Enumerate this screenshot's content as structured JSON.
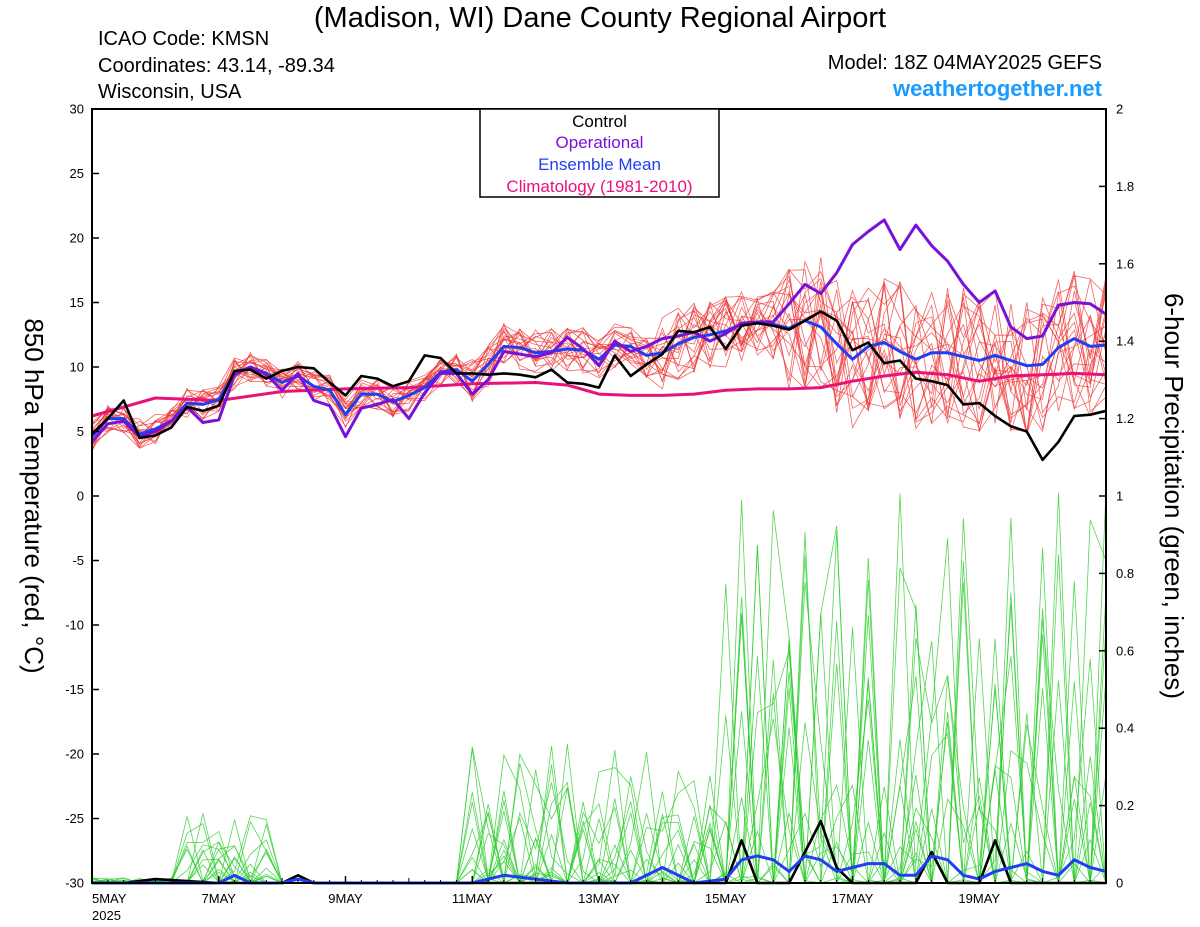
{
  "header": {
    "title": "(Madison, WI) Dane County Regional Airport",
    "icao": "ICAO Code: KMSN",
    "coords": "Coordinates: 43.14, -89.34",
    "region": "Wisconsin, USA",
    "model": "Model: 18Z 04MAY2025 GEFS",
    "site": "weathertogether.net"
  },
  "chart_data": {
    "type": "line",
    "ylabel_left": "850 hPa Temperature (red, °C)",
    "ylabel_right": "6-hour Precipitation (green, inches)",
    "ylim_left": [
      -30,
      30
    ],
    "ylim_right": [
      0,
      2
    ],
    "yticks_left": [
      "30",
      "25",
      "20",
      "15",
      "10",
      "5",
      "0",
      "-5",
      "-10",
      "-15",
      "-20",
      "-25",
      "-30"
    ],
    "yticks_right": [
      "2",
      "1.8",
      "1.6",
      "1.4",
      "1.2",
      "1",
      "0.8",
      "0.6",
      "0.4",
      "0.2",
      "0"
    ],
    "xticks": [
      {
        "label": "5MAY",
        "sub": "2025",
        "day": 0
      },
      {
        "label": "7MAY",
        "day": 2
      },
      {
        "label": "9MAY",
        "day": 4
      },
      {
        "label": "11MAY",
        "day": 6
      },
      {
        "label": "13MAY",
        "day": 8
      },
      {
        "label": "15MAY",
        "day": 10
      },
      {
        "label": "17MAY",
        "day": 12
      },
      {
        "label": "19MAY",
        "day": 14
      }
    ],
    "xlim_days": [
      0,
      16
    ],
    "legend": [
      "Control",
      "Operational",
      "Ensemble Mean",
      "Climatology (1981-2010)"
    ],
    "colors": {
      "control": "#000000",
      "operational": "#7a12d6",
      "mean": "#1f3ff0",
      "climatology": "#e8127a",
      "members": "#ee3333",
      "precip": "#29cc29"
    },
    "series": [
      {
        "name": "Control",
        "x": [
          0,
          0.25,
          0.5,
          0.75,
          1,
          1.25,
          1.5,
          1.75,
          2,
          2.25,
          2.5,
          2.75,
          3,
          3.25,
          3.5,
          3.75,
          4,
          4.25,
          4.5,
          4.75,
          5,
          5.25,
          5.5,
          5.75,
          6,
          6.25,
          6.5,
          6.75,
          7,
          7.25,
          7.5,
          7.75,
          8,
          8.25,
          8.5,
          8.75,
          9,
          9.25,
          9.5,
          9.75,
          10,
          10.25,
          10.5,
          10.75,
          11,
          11.25,
          11.5,
          11.75,
          12,
          12.25,
          12.5,
          12.75,
          13,
          13.25,
          13.5,
          13.75,
          14,
          14.25,
          14.5,
          14.75,
          15,
          15.25,
          15.5,
          15.75,
          16
        ],
        "values": [
          4.8,
          6,
          7.4,
          4.5,
          4.7,
          5.3,
          6.9,
          6.6,
          7,
          9.7,
          9.8,
          9.1,
          9.7,
          10,
          9.9,
          8.8,
          7.8,
          9.3,
          9.1,
          8.5,
          8.9,
          10.9,
          10.7,
          9.5,
          9.5,
          9.4,
          9.5,
          9.4,
          9.2,
          9.8,
          8.8,
          8.7,
          8.4,
          10.9,
          9.3,
          10.2,
          11,
          12.8,
          12.7,
          13.1,
          11.4,
          13.2,
          13.4,
          13.2,
          12.9,
          13.6,
          14.3,
          13.6,
          11.3,
          11.9,
          10.3,
          10.5,
          9.1,
          8.9,
          8.6,
          7.1,
          7.2,
          6.2,
          5.4,
          5,
          2.8,
          4.2,
          6.2,
          6.3,
          6.6
        ]
      },
      {
        "name": "Operational",
        "x": [
          0,
          0.25,
          0.5,
          0.75,
          1,
          1.25,
          1.5,
          1.75,
          2,
          2.25,
          2.5,
          2.75,
          3,
          3.25,
          3.5,
          3.75,
          4,
          4.25,
          4.5,
          4.75,
          5,
          5.25,
          5.5,
          5.75,
          6,
          6.25,
          6.5,
          6.75,
          7,
          7.25,
          7.5,
          7.75,
          8,
          8.25,
          8.5,
          8.75,
          9,
          9.25,
          9.5,
          9.75,
          10,
          10.25,
          10.5,
          10.75,
          11,
          11.25,
          11.5,
          11.75,
          12,
          12.25,
          12.5,
          12.75,
          13,
          13.25,
          13.5,
          13.75,
          14,
          14.25,
          14.5,
          14.75,
          15,
          15.25,
          15.5,
          15.75,
          16
        ],
        "values": [
          4.2,
          5.6,
          5.8,
          4.6,
          5,
          5.8,
          6.9,
          5.7,
          5.9,
          9.4,
          10,
          9.4,
          8.2,
          9.5,
          7.4,
          7,
          4.6,
          6.8,
          7.1,
          7.5,
          6,
          8,
          9.5,
          9.5,
          7.9,
          9,
          11.2,
          11,
          10.8,
          11.1,
          12.3,
          11.4,
          10.1,
          12,
          11.2,
          11.6,
          12.2,
          12.4,
          12.7,
          12,
          12.6,
          13.4,
          13.5,
          13.5,
          14.9,
          16.4,
          15.7,
          17.3,
          19.5,
          20.5,
          21.4,
          19.1,
          21,
          19.4,
          18.2,
          16.4,
          15,
          15.9,
          13.1,
          12.2,
          12.4,
          14.8,
          15,
          14.9,
          14.1
        ]
      },
      {
        "name": "Ensemble Mean",
        "x": [
          0,
          0.25,
          0.5,
          0.75,
          1,
          1.25,
          1.5,
          1.75,
          2,
          2.25,
          2.5,
          2.75,
          3,
          3.25,
          3.5,
          3.75,
          4,
          4.25,
          4.5,
          4.75,
          5,
          5.25,
          5.5,
          5.75,
          6,
          6.25,
          6.5,
          6.75,
          7,
          7.25,
          7.5,
          7.75,
          8,
          8.25,
          8.5,
          8.75,
          9,
          9.25,
          9.5,
          9.75,
          10,
          10.25,
          10.5,
          10.75,
          11,
          11.25,
          11.5,
          11.75,
          12,
          12.25,
          12.5,
          12.75,
          13,
          13.25,
          13.5,
          13.75,
          14,
          14.25,
          14.5,
          14.75,
          15,
          15.25,
          15.5,
          15.75,
          16
        ],
        "values": [
          4.6,
          6,
          6,
          4.8,
          5.2,
          5.8,
          7.2,
          7.1,
          7.5,
          9.5,
          10,
          9.5,
          8.8,
          9.3,
          8.5,
          8.2,
          6.3,
          7.9,
          7.9,
          7.3,
          7.8,
          8.4,
          9.6,
          9.8,
          8.9,
          10.2,
          11.6,
          11.5,
          11.1,
          11.2,
          11.4,
          11.3,
          10.6,
          11.7,
          11.6,
          10.9,
          11.1,
          11.8,
          12.3,
          12.5,
          12.8,
          13.3,
          13.4,
          13.3,
          13,
          13.6,
          13.1,
          11.8,
          10.6,
          11.6,
          11.9,
          11.2,
          10.6,
          11.1,
          11.1,
          10.8,
          10.5,
          10.9,
          10.5,
          10.1,
          10.2,
          11.5,
          12.2,
          11.6,
          11.7
        ]
      },
      {
        "name": "Climatology (1981-2010)",
        "x": [
          0,
          1,
          2,
          3,
          4,
          5,
          6,
          7,
          7.5,
          8,
          8.5,
          9,
          9.5,
          10,
          10.5,
          11,
          11.5,
          12,
          12.5,
          13,
          13.5,
          14,
          14.5,
          15,
          15.5,
          16
        ],
        "values": [
          6.2,
          7.6,
          7.4,
          8.1,
          8.3,
          8.4,
          8.7,
          8.8,
          8.6,
          7.9,
          7.8,
          7.8,
          7.9,
          8.2,
          8.3,
          8.3,
          8.4,
          8.9,
          9.3,
          9.6,
          9.4,
          8.9,
          9.3,
          9.4,
          9.5,
          9.4
        ]
      },
      {
        "name": "Control precipitation",
        "x": [
          0,
          0.5,
          1,
          2,
          2.5,
          3,
          3.25,
          3.5,
          4,
          5,
          6,
          7,
          8,
          9,
          9.5,
          10,
          10.25,
          10.5,
          10.75,
          11,
          11.5,
          11.75,
          12,
          12.5,
          13,
          13.25,
          13.5,
          13.75,
          14,
          14.25,
          14.5,
          14.75,
          15,
          15.5,
          16
        ],
        "values": [
          0,
          0,
          0.01,
          0,
          0,
          0,
          0.02,
          0,
          0,
          0,
          0,
          0,
          0,
          0,
          0,
          0,
          0.11,
          0,
          0,
          0,
          0.16,
          0.04,
          0,
          0,
          0,
          0.08,
          0,
          0,
          0,
          0.11,
          0,
          0,
          0,
          0,
          0
        ]
      },
      {
        "name": "Mean precipitation",
        "x": [
          0,
          0.5,
          1,
          1.5,
          2,
          2.25,
          2.5,
          3,
          3.25,
          3.5,
          4,
          5,
          6,
          6.5,
          7,
          7.5,
          8,
          8.5,
          9,
          9.5,
          10,
          10.25,
          10.5,
          10.75,
          11,
          11.25,
          11.5,
          11.75,
          12,
          12.25,
          12.5,
          12.75,
          13,
          13.25,
          13.5,
          13.75,
          14,
          14.25,
          14.5,
          14.75,
          15,
          15.25,
          15.5,
          15.75,
          16
        ],
        "values": [
          0,
          0,
          0,
          0,
          0,
          0.02,
          0,
          0,
          0.01,
          0,
          0,
          0,
          0,
          0.02,
          0.01,
          0,
          0,
          0,
          0.04,
          0,
          0.01,
          0.06,
          0.07,
          0.06,
          0.03,
          0.07,
          0.06,
          0.03,
          0.04,
          0.05,
          0.05,
          0.02,
          0.02,
          0.07,
          0.06,
          0.02,
          0.01,
          0.03,
          0.04,
          0.05,
          0.03,
          0.02,
          0.06,
          0.04,
          0.03
        ]
      }
    ]
  }
}
